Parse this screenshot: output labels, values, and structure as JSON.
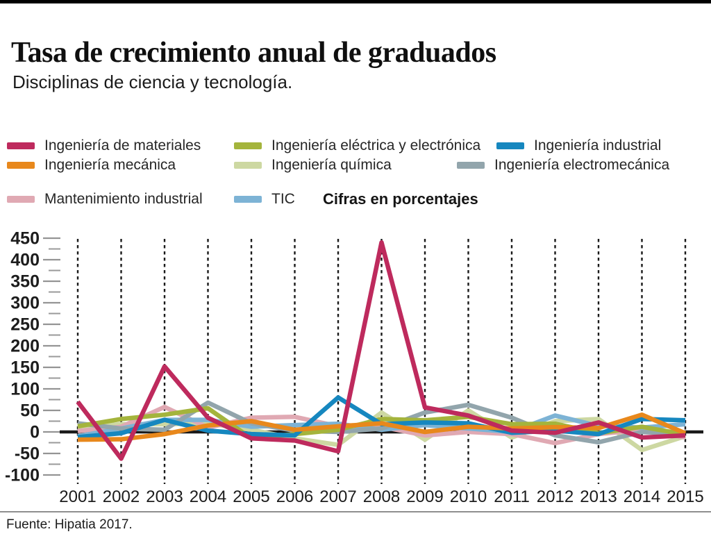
{
  "page": {
    "title": "Tasa de crecimiento anual de graduados",
    "subtitle": "Disciplinas de ciencia y tecnología.",
    "legend_note": "Cifras en porcentajes",
    "source": "Fuente: Hipatia 2017."
  },
  "legend": {
    "rows": [
      [
        {
          "label": "Ingeniería de materiales",
          "color": "#be2a5d"
        },
        {
          "label": "Ingeniería eléctrica y electrónica",
          "color": "#a4b43c"
        },
        {
          "label": "Ingeniería industrial",
          "color": "#1687bf"
        }
      ],
      [
        {
          "label": "Ingeniería mecánica",
          "color": "#e8881c"
        },
        {
          "label": "Ingeniería química",
          "color": "#cdd8a2"
        },
        {
          "label": "Ingeniería electromecánica",
          "color": "#92a5ac"
        }
      ],
      [
        {
          "label": "Mantenimiento industrial",
          "color": "#e0a9b3"
        },
        {
          "label": "TIC",
          "color": "#7db3d5"
        }
      ]
    ]
  },
  "chart_data": {
    "type": "line",
    "title": "Tasa de crecimiento anual de graduados",
    "subtitle": "Disciplinas de ciencia y tecnología.",
    "units_note": "Cifras en porcentajes",
    "x": [
      2001,
      2002,
      2003,
      2004,
      2005,
      2006,
      2007,
      2008,
      2009,
      2010,
      2011,
      2012,
      2013,
      2014,
      2015
    ],
    "ylim": [
      -100,
      450
    ],
    "ytick_major_step": 50,
    "ytick_minor_step": 25,
    "grid": "vertical-dashed-per-year",
    "zero_line": true,
    "legend_position": "top",
    "series": [
      {
        "id": "quimica",
        "name": "Ingeniería química",
        "color": "#cdd8a2",
        "values": [
          10,
          18,
          18,
          20,
          5,
          -15,
          -30,
          45,
          -18,
          50,
          -13,
          25,
          30,
          -42,
          -10
        ]
      },
      {
        "id": "mantenimiento",
        "name": "Mantenimiento industrial",
        "color": "#e0a9b3",
        "values": [
          2,
          12,
          58,
          10,
          33,
          35,
          13,
          12,
          -8,
          0,
          -5,
          -26,
          -5,
          5,
          -13
        ]
      },
      {
        "id": "tic",
        "name": "TIC",
        "color": "#7db3d5",
        "values": [
          -10,
          8,
          28,
          28,
          12,
          16,
          19,
          5,
          16,
          8,
          0,
          38,
          14,
          10,
          18
        ]
      },
      {
        "id": "electromecanica",
        "name": "Ingeniería electromecánica",
        "color": "#92a5ac",
        "values": [
          20,
          8,
          5,
          68,
          20,
          3,
          0,
          8,
          45,
          63,
          33,
          -8,
          -24,
          0,
          -5
        ]
      },
      {
        "id": "electrica",
        "name": "Ingeniería eléctrica y electrónica",
        "color": "#a4b43c",
        "values": [
          13,
          30,
          40,
          55,
          -15,
          -5,
          5,
          30,
          27,
          35,
          18,
          19,
          -3,
          12,
          -6
        ]
      },
      {
        "id": "industrial",
        "name": "Ingeniería industrial",
        "color": "#1687bf",
        "values": [
          -12,
          -3,
          28,
          3,
          -5,
          -8,
          80,
          18,
          22,
          20,
          -2,
          3,
          -5,
          30,
          27
        ]
      },
      {
        "id": "mecanica",
        "name": "Ingeniería mecánica",
        "color": "#e8881c",
        "values": [
          -18,
          -17,
          -5,
          15,
          25,
          5,
          13,
          20,
          0,
          12,
          8,
          11,
          9,
          40,
          -3
        ]
      },
      {
        "id": "materiales",
        "name": "Ingeniería de materiales",
        "color": "#be2a5d",
        "values": [
          70,
          -62,
          152,
          33,
          -15,
          -20,
          -45,
          440,
          57,
          38,
          3,
          -2,
          22,
          -13,
          -8
        ]
      }
    ]
  }
}
